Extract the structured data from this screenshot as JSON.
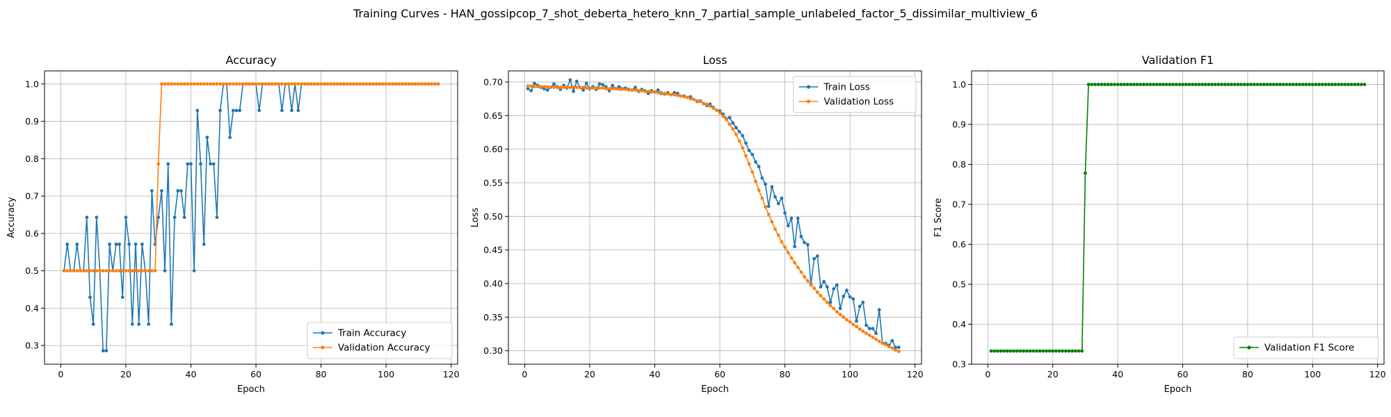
{
  "suptitle": "Training Curves - HAN_gossipcop_7_shot_deberta_hetero_knn_7_partial_sample_unlabeled_factor_5_dissimilar_multiview_6",
  "colors": {
    "train": "#1f77b4",
    "val": "#ff7f0e",
    "f1": "#008000",
    "grid": "#b0b0b0"
  },
  "chart_data": [
    {
      "type": "line",
      "title": "Accuracy",
      "xlabel": "Epoch",
      "ylabel": "Accuracy",
      "xlim": [
        -5,
        122
      ],
      "ylim": [
        0.25,
        1.035
      ],
      "xticks": [
        0,
        20,
        40,
        60,
        80,
        100,
        120
      ],
      "xtick_labels": [
        "0",
        "20",
        "40",
        "60",
        "80",
        "100",
        "120"
      ],
      "yticks": [
        0.3,
        0.4,
        0.5,
        0.6,
        0.7,
        0.8,
        0.9,
        1.0
      ],
      "ytick_labels": [
        "0.3",
        "0.4",
        "0.5",
        "0.6",
        "0.7",
        "0.8",
        "0.9",
        "1.0"
      ],
      "grid": true,
      "legend_position": "lower-right",
      "series": [
        {
          "name": "Train Accuracy",
          "color": "#1f77b4",
          "x_start": 1,
          "values": [
            0.5,
            0.571,
            0.5,
            0.5,
            0.571,
            0.5,
            0.5,
            0.643,
            0.429,
            0.357,
            0.643,
            0.5,
            0.286,
            0.286,
            0.571,
            0.5,
            0.571,
            0.571,
            0.429,
            0.643,
            0.571,
            0.357,
            0.571,
            0.357,
            0.571,
            0.5,
            0.357,
            0.714,
            0.571,
            0.643,
            0.714,
            0.5,
            0.786,
            0.357,
            0.643,
            0.714,
            0.714,
            0.643,
            0.786,
            0.786,
            0.5,
            0.929,
            0.786,
            0.571,
            0.857,
            0.786,
            0.786,
            0.643,
            0.929,
            1.0,
            1.0,
            0.857,
            0.929,
            0.929,
            0.929,
            1.0,
            1.0,
            1.0,
            1.0,
            1.0,
            0.929,
            1.0,
            1.0,
            1.0,
            1.0,
            1.0,
            1.0,
            0.929,
            1.0,
            1.0,
            0.929,
            1.0,
            0.929,
            1.0,
            1.0,
            1.0,
            1.0,
            1.0,
            1.0,
            1.0,
            1.0,
            1.0,
            1.0,
            1.0,
            1.0,
            1.0,
            1.0,
            1.0,
            1.0,
            1.0,
            1.0,
            1.0,
            1.0,
            1.0,
            1.0,
            1.0,
            1.0,
            1.0,
            1.0,
            1.0,
            1.0,
            1.0,
            1.0,
            1.0,
            1.0,
            1.0,
            1.0,
            1.0,
            1.0,
            1.0,
            1.0,
            1.0,
            1.0,
            1.0,
            1.0,
            1.0
          ]
        },
        {
          "name": "Validation Accuracy",
          "color": "#ff7f0e",
          "x_start": 1,
          "values": [
            0.5,
            0.5,
            0.5,
            0.5,
            0.5,
            0.5,
            0.5,
            0.5,
            0.5,
            0.5,
            0.5,
            0.5,
            0.5,
            0.5,
            0.5,
            0.5,
            0.5,
            0.5,
            0.5,
            0.5,
            0.5,
            0.5,
            0.5,
            0.5,
            0.5,
            0.5,
            0.5,
            0.5,
            0.5,
            0.786,
            1.0,
            1.0,
            1.0,
            1.0,
            1.0,
            1.0,
            1.0,
            1.0,
            1.0,
            1.0,
            1.0,
            1.0,
            1.0,
            1.0,
            1.0,
            1.0,
            1.0,
            1.0,
            1.0,
            1.0,
            1.0,
            1.0,
            1.0,
            1.0,
            1.0,
            1.0,
            1.0,
            1.0,
            1.0,
            1.0,
            1.0,
            1.0,
            1.0,
            1.0,
            1.0,
            1.0,
            1.0,
            1.0,
            1.0,
            1.0,
            1.0,
            1.0,
            1.0,
            1.0,
            1.0,
            1.0,
            1.0,
            1.0,
            1.0,
            1.0,
            1.0,
            1.0,
            1.0,
            1.0,
            1.0,
            1.0,
            1.0,
            1.0,
            1.0,
            1.0,
            1.0,
            1.0,
            1.0,
            1.0,
            1.0,
            1.0,
            1.0,
            1.0,
            1.0,
            1.0,
            1.0,
            1.0,
            1.0,
            1.0,
            1.0,
            1.0,
            1.0,
            1.0,
            1.0,
            1.0,
            1.0,
            1.0,
            1.0,
            1.0,
            1.0,
            1.0
          ]
        }
      ]
    },
    {
      "type": "line",
      "title": "Loss",
      "xlabel": "Epoch",
      "ylabel": "Loss",
      "xlim": [
        -5,
        122
      ],
      "ylim": [
        0.28,
        0.7165
      ],
      "xticks": [
        0,
        20,
        40,
        60,
        80,
        100,
        120
      ],
      "xtick_labels": [
        "0",
        "20",
        "40",
        "60",
        "80",
        "100",
        "120"
      ],
      "yticks": [
        0.3,
        0.35,
        0.4,
        0.45,
        0.5,
        0.55,
        0.6,
        0.65,
        0.7
      ],
      "ytick_labels": [
        "0.30",
        "0.35",
        "0.40",
        "0.45",
        "0.50",
        "0.55",
        "0.60",
        "0.65",
        "0.70"
      ],
      "grid": true,
      "legend_position": "upper-right",
      "series": [
        {
          "name": "Train Loss",
          "color": "#1f77b4",
          "x_start": 1,
          "values": [
            0.69,
            0.687,
            0.698,
            0.695,
            0.692,
            0.69,
            0.688,
            0.692,
            0.697,
            0.693,
            0.689,
            0.695,
            0.691,
            0.703,
            0.686,
            0.701,
            0.692,
            0.688,
            0.698,
            0.69,
            0.693,
            0.689,
            0.697,
            0.696,
            0.693,
            0.687,
            0.695,
            0.69,
            0.693,
            0.69,
            0.691,
            0.689,
            0.688,
            0.692,
            0.686,
            0.689,
            0.687,
            0.683,
            0.687,
            0.685,
            0.688,
            0.683,
            0.682,
            0.684,
            0.681,
            0.684,
            0.683,
            0.679,
            0.679,
            0.677,
            0.678,
            0.674,
            0.671,
            0.672,
            0.668,
            0.665,
            0.667,
            0.662,
            0.658,
            0.657,
            0.652,
            0.645,
            0.647,
            0.639,
            0.632,
            0.626,
            0.62,
            0.609,
            0.598,
            0.592,
            0.581,
            0.574,
            0.557,
            0.548,
            0.515,
            0.544,
            0.529,
            0.519,
            0.527,
            0.505,
            0.486,
            0.497,
            0.455,
            0.497,
            0.47,
            0.461,
            0.458,
            0.399,
            0.437,
            0.441,
            0.395,
            0.403,
            0.395,
            0.372,
            0.392,
            0.398,
            0.363,
            0.381,
            0.39,
            0.38,
            0.377,
            0.344,
            0.366,
            0.372,
            0.338,
            0.333,
            0.333,
            0.326,
            0.361,
            0.311,
            0.311,
            0.308,
            0.315,
            0.305,
            0.305
          ]
        },
        {
          "name": "Validation Loss",
          "color": "#ff7f0e",
          "x_start": 1,
          "values": [
            0.694,
            0.694,
            0.693,
            0.693,
            0.693,
            0.693,
            0.693,
            0.692,
            0.692,
            0.692,
            0.692,
            0.692,
            0.692,
            0.692,
            0.692,
            0.692,
            0.692,
            0.692,
            0.691,
            0.691,
            0.691,
            0.691,
            0.691,
            0.691,
            0.69,
            0.69,
            0.69,
            0.69,
            0.689,
            0.689,
            0.689,
            0.688,
            0.688,
            0.688,
            0.687,
            0.687,
            0.686,
            0.686,
            0.685,
            0.685,
            0.684,
            0.684,
            0.683,
            0.682,
            0.681,
            0.681,
            0.68,
            0.679,
            0.678,
            0.677,
            0.675,
            0.674,
            0.672,
            0.671,
            0.668,
            0.667,
            0.664,
            0.661,
            0.658,
            0.654,
            0.649,
            0.644,
            0.637,
            0.63,
            0.622,
            0.612,
            0.602,
            0.59,
            0.578,
            0.566,
            0.552,
            0.539,
            0.527,
            0.514,
            0.503,
            0.492,
            0.481,
            0.472,
            0.462,
            0.454,
            0.446,
            0.438,
            0.431,
            0.424,
            0.417,
            0.41,
            0.404,
            0.398,
            0.393,
            0.387,
            0.382,
            0.377,
            0.372,
            0.367,
            0.363,
            0.358,
            0.354,
            0.35,
            0.346,
            0.343,
            0.339,
            0.336,
            0.332,
            0.329,
            0.326,
            0.323,
            0.32,
            0.317,
            0.314,
            0.311,
            0.309,
            0.306,
            0.304,
            0.301,
            0.299
          ]
        }
      ]
    },
    {
      "type": "line",
      "title": "Validation F1",
      "xlabel": "Epoch",
      "ylabel": "F1 Score",
      "xlim": [
        -5,
        122
      ],
      "ylim": [
        0.3,
        1.034
      ],
      "xticks": [
        0,
        20,
        40,
        60,
        80,
        100,
        120
      ],
      "xtick_labels": [
        "0",
        "20",
        "40",
        "60",
        "80",
        "100",
        "120"
      ],
      "yticks": [
        0.3,
        0.4,
        0.5,
        0.6,
        0.7,
        0.8,
        0.9,
        1.0
      ],
      "ytick_labels": [
        "0.3",
        "0.4",
        "0.5",
        "0.6",
        "0.7",
        "0.8",
        "0.9",
        "1.0"
      ],
      "grid": true,
      "legend_position": "lower-right",
      "series": [
        {
          "name": "Validation F1 Score",
          "color": "#008000",
          "x_start": 1,
          "values": [
            0.333,
            0.333,
            0.333,
            0.333,
            0.333,
            0.333,
            0.333,
            0.333,
            0.333,
            0.333,
            0.333,
            0.333,
            0.333,
            0.333,
            0.333,
            0.333,
            0.333,
            0.333,
            0.333,
            0.333,
            0.333,
            0.333,
            0.333,
            0.333,
            0.333,
            0.333,
            0.333,
            0.333,
            0.333,
            0.778,
            1.0,
            1.0,
            1.0,
            1.0,
            1.0,
            1.0,
            1.0,
            1.0,
            1.0,
            1.0,
            1.0,
            1.0,
            1.0,
            1.0,
            1.0,
            1.0,
            1.0,
            1.0,
            1.0,
            1.0,
            1.0,
            1.0,
            1.0,
            1.0,
            1.0,
            1.0,
            1.0,
            1.0,
            1.0,
            1.0,
            1.0,
            1.0,
            1.0,
            1.0,
            1.0,
            1.0,
            1.0,
            1.0,
            1.0,
            1.0,
            1.0,
            1.0,
            1.0,
            1.0,
            1.0,
            1.0,
            1.0,
            1.0,
            1.0,
            1.0,
            1.0,
            1.0,
            1.0,
            1.0,
            1.0,
            1.0,
            1.0,
            1.0,
            1.0,
            1.0,
            1.0,
            1.0,
            1.0,
            1.0,
            1.0,
            1.0,
            1.0,
            1.0,
            1.0,
            1.0,
            1.0,
            1.0,
            1.0,
            1.0,
            1.0,
            1.0,
            1.0,
            1.0,
            1.0,
            1.0,
            1.0,
            1.0,
            1.0,
            1.0,
            1.0,
            1.0
          ]
        }
      ]
    }
  ]
}
